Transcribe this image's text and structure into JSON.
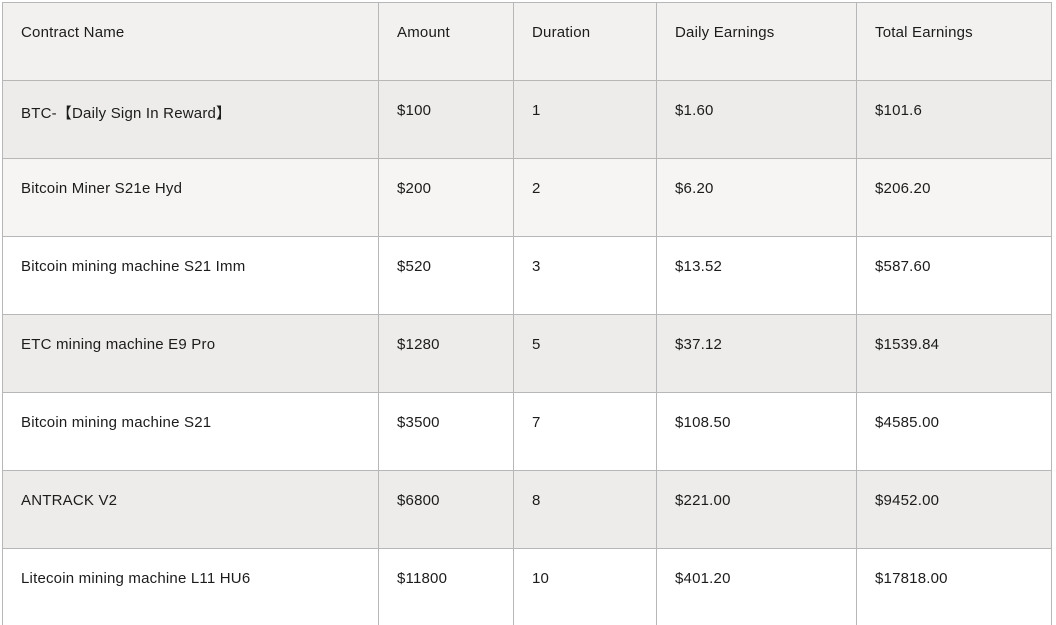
{
  "table": {
    "headers": [
      "Contract Name",
      "Amount",
      "Duration",
      "Daily Earnings",
      "Total Earnings"
    ],
    "rows": [
      [
        "BTC-【Daily Sign In Reward】",
        "$100",
        "1",
        "$1.60",
        "$101.6"
      ],
      [
        "Bitcoin Miner S21e Hyd",
        "$200",
        "2",
        "$6.20",
        "$206.20"
      ],
      [
        "Bitcoin mining machine S21 Imm",
        "$520",
        "3",
        "$13.52",
        "$587.60"
      ],
      [
        "ETC mining machine E9 Pro",
        "$1280",
        "5",
        "$37.12",
        "$1539.84"
      ],
      [
        "Bitcoin mining machine S21",
        "$3500",
        "7",
        "$108.50",
        "$4585.00"
      ],
      [
        "ANTRACK V2",
        "$6800",
        "8",
        "$221.00",
        "$9452.00"
      ],
      [
        "Litecoin mining machine L11 HU6",
        "$11800",
        "10",
        "$401.20",
        "$17818.00"
      ]
    ]
  },
  "colors": {
    "header_bg": "#f2f1ef",
    "stripe_gray": "#edecea",
    "stripe_light": "#f6f5f3",
    "row_white": "#ffffff",
    "inner_border": "#b7b7b7",
    "outer_border": "#c9c9c9",
    "text": "#1c1c1c"
  }
}
